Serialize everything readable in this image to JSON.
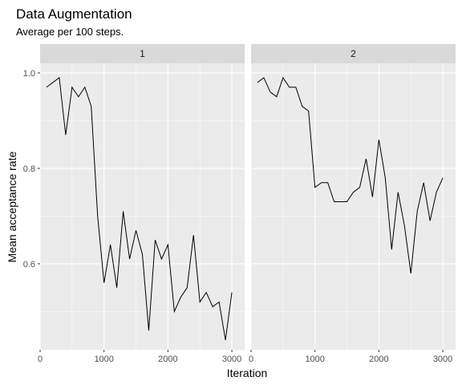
{
  "chart_data": {
    "type": "line",
    "title": "Data Augmentation",
    "subtitle": "Average per 100 steps.",
    "xlabel": "Iteration",
    "ylabel": "Mean acceptance rate",
    "xlim": [
      0,
      3200
    ],
    "ylim": [
      0.42,
      1.02
    ],
    "x_ticks": [
      0,
      1000,
      2000,
      3000
    ],
    "x_tick_labels": [
      "0",
      "1000",
      "2000",
      "3000"
    ],
    "y_ticks": [
      0.6,
      0.8,
      1.0
    ],
    "y_tick_labels": [
      "0.6",
      "0.8",
      "1.0"
    ],
    "grid": true,
    "line_color": "#000000",
    "panel_background": "#ebebeb",
    "strip_background": "#d9d9d9",
    "x": [
      100,
      200,
      300,
      400,
      500,
      600,
      700,
      800,
      900,
      1000,
      1100,
      1200,
      1300,
      1400,
      1500,
      1600,
      1700,
      1800,
      1900,
      2000,
      2100,
      2200,
      2300,
      2400,
      2500,
      2600,
      2700,
      2800,
      2900,
      3000
    ],
    "panels": [
      {
        "label": "1",
        "values": [
          0.97,
          0.98,
          0.99,
          0.87,
          0.97,
          0.95,
          0.97,
          0.93,
          0.7,
          0.56,
          0.64,
          0.55,
          0.71,
          0.61,
          0.67,
          0.62,
          0.46,
          0.65,
          0.61,
          0.64,
          0.5,
          0.53,
          0.55,
          0.66,
          0.52,
          0.54,
          0.51,
          0.52,
          0.44,
          0.54
        ]
      },
      {
        "label": "2",
        "values": [
          0.98,
          0.99,
          0.96,
          0.95,
          0.99,
          0.97,
          0.97,
          0.93,
          0.92,
          0.76,
          0.77,
          0.77,
          0.73,
          0.73,
          0.73,
          0.75,
          0.76,
          0.82,
          0.74,
          0.86,
          0.78,
          0.63,
          0.75,
          0.68,
          0.58,
          0.71,
          0.77,
          0.69,
          0.75,
          0.78
        ]
      }
    ]
  }
}
